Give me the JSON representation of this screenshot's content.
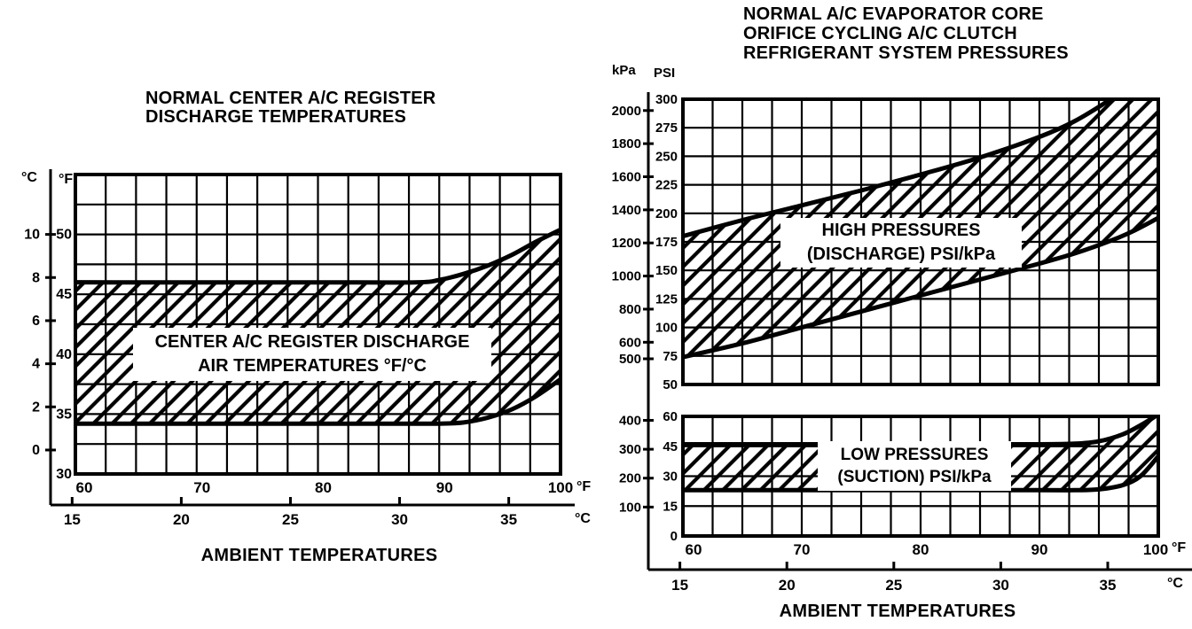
{
  "page": {
    "background": "#ffffff",
    "ink": "#000000"
  },
  "left_chart": {
    "title_lines": [
      "NORMAL CENTER A/C REGISTER",
      "DISCHARGE TEMPERATURES"
    ],
    "band_label_lines": [
      "CENTER A/C REGISTER DISCHARGE",
      "AIR TEMPERATURES °F/°C"
    ],
    "x_caption": "AMBIENT TEMPERATURES"
  },
  "right_chart": {
    "title_lines": [
      "NORMAL A/C EVAPORATOR CORE",
      "ORIFICE CYCLING A/C CLUTCH",
      "REFRIGERANT SYSTEM PRESSURES"
    ],
    "high_band_label_lines": [
      "HIGH PRESSURES",
      "(DISCHARGE) PSI/kPa"
    ],
    "low_band_label_lines": [
      "LOW PRESSURES",
      "(SUCTION) PSI/kPa"
    ],
    "x_caption": "AMBIENT TEMPERATURES"
  },
  "chart_data": [
    {
      "id": "register",
      "type": "area",
      "title": "NORMAL CENTER A/C REGISTER DISCHARGE TEMPERATURES",
      "xlabel": "AMBIENT TEMPERATURES",
      "band_label": "CENTER A/C REGISTER DISCHARGE AIR TEMPERATURES °F/°C",
      "grid": "on",
      "x_axis": {
        "unit_f": "°F",
        "ticks_f": [
          60,
          70,
          80,
          90,
          100
        ],
        "unit_c": "°C",
        "ticks_c": [
          15,
          20,
          25,
          30,
          35
        ],
        "xlim_f": [
          60,
          100
        ],
        "grid_step_f": 2.5
      },
      "y_axis": {
        "unit_c": "°C",
        "ticks_c": [
          10,
          8,
          6,
          4,
          2,
          0
        ],
        "unit_f": "°F",
        "ticks_f": [
          50,
          45,
          40,
          35,
          30
        ],
        "ylim_f": [
          30,
          55
        ],
        "grid_step_f": 2.5
      },
      "band": {
        "x_f": [
          60,
          70,
          80,
          88,
          90,
          92,
          94,
          96,
          98,
          100
        ],
        "upper_f": [
          46,
          46,
          46,
          46,
          46.2,
          46.7,
          47.4,
          48.3,
          49.4,
          50.4
        ],
        "lower_f": [
          34.2,
          34.2,
          34.2,
          34.2,
          34.2,
          34.3,
          34.7,
          35.4,
          36.5,
          37.9
        ]
      }
    },
    {
      "id": "high_pressures",
      "type": "area",
      "title": "NORMAL A/C EVAPORATOR CORE ORIFICE CYCLING A/C CLUTCH REFRIGERANT SYSTEM PRESSURES",
      "xlabel": "AMBIENT TEMPERATURES",
      "band_label": "HIGH PRESSURES (DISCHARGE) PSI/kPa",
      "grid": "on",
      "x_axis": {
        "unit_f": "°F",
        "ticks_f": [
          60,
          70,
          80,
          90,
          100
        ],
        "unit_c": "°C",
        "ticks_c": [
          15,
          20,
          25,
          30,
          35
        ],
        "xlim_f": [
          60,
          100
        ],
        "grid_step_f": 2.5
      },
      "y_axis": {
        "unit_kpa": "kPa",
        "ticks_kpa": [
          2000,
          1800,
          1600,
          1400,
          1200,
          1000,
          800,
          600,
          500
        ],
        "unit_psi": "PSI",
        "ticks_psi": [
          300,
          275,
          250,
          225,
          200,
          175,
          150,
          125,
          100,
          75,
          50
        ],
        "ylim_psi": [
          50,
          300
        ],
        "grid_step_psi": 25
      },
      "band": {
        "x_f": [
          60,
          65,
          70,
          75,
          80,
          85,
          90,
          93,
          96,
          98,
          100
        ],
        "upper_psi": [
          180,
          194,
          207,
          220,
          234,
          249,
          267,
          281,
          300,
          315,
          330
        ],
        "lower_psi": [
          74,
          86,
          100,
          114,
          128,
          142,
          156,
          165,
          176,
          185,
          196
        ]
      }
    },
    {
      "id": "low_pressures",
      "type": "area",
      "title": "NORMAL A/C EVAPORATOR CORE ORIFICE CYCLING A/C CLUTCH REFRIGERANT SYSTEM PRESSURES",
      "xlabel": "AMBIENT TEMPERATURES",
      "band_label": "LOW PRESSURES (SUCTION) PSI/kPa",
      "grid": "on",
      "y_axis": {
        "unit_kpa": "kPa",
        "ticks_kpa": [
          400,
          300,
          200,
          100
        ],
        "unit_psi": "PSI",
        "ticks_psi": [
          60,
          45,
          30,
          15,
          0
        ],
        "ylim_psi": [
          0,
          60
        ],
        "grid_step_psi": 15
      },
      "band": {
        "x_f": [
          60,
          70,
          80,
          90,
          93,
          95,
          97,
          98.5,
          100
        ],
        "upper_psi": [
          46,
          46,
          46,
          46,
          46.3,
          47.5,
          51,
          55.5,
          61
        ],
        "lower_psi": [
          23,
          23,
          23,
          23,
          23,
          23.4,
          25.5,
          30,
          40
        ]
      }
    }
  ]
}
